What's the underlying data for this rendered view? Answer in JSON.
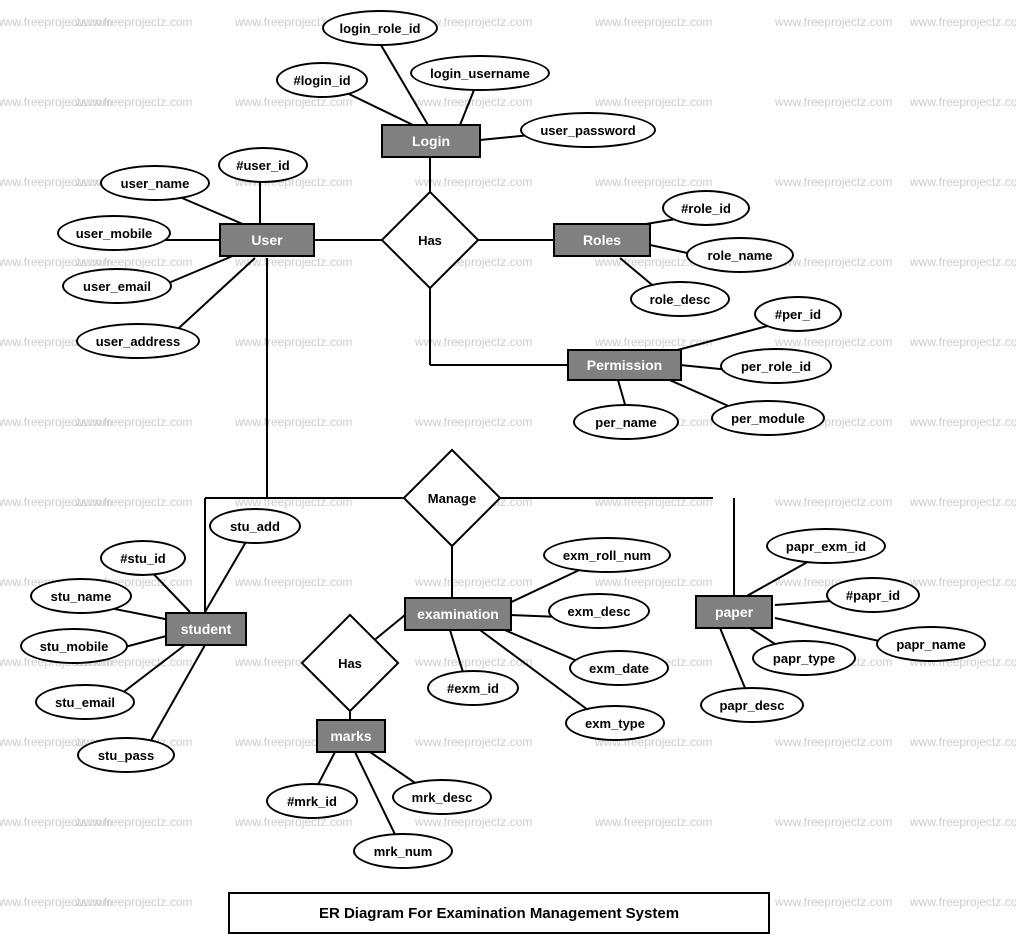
{
  "title": "ER Diagram For Examination Management System",
  "watermark_text": "www.freeprojectz.com",
  "colors": {
    "entity_bg": "#808080",
    "entity_text": "#ffffff",
    "border": "#000000",
    "attr_bg": "#ffffff",
    "watermark": "#cccccc"
  },
  "entities": {
    "login": "Login",
    "user": "User",
    "roles": "Roles",
    "permission": "Permission",
    "student": "student",
    "examination": "examination",
    "marks": "marks",
    "paper": "paper"
  },
  "relationships": {
    "has1": "Has",
    "manage": "Manage",
    "has2": "Has"
  },
  "attributes": {
    "login_role_id": "login_role_id",
    "login_id": "#login_id",
    "login_username": "login_username",
    "user_password": "user_password",
    "user_id": "#user_id",
    "user_name": "user_name",
    "user_mobile": "user_mobile",
    "user_email": "user_email",
    "user_address": "user_address",
    "role_id": "#role_id",
    "role_name": "role_name",
    "role_desc": "role_desc",
    "per_id": "#per_id",
    "per_role_id": "per_role_id",
    "per_module": "per_module",
    "per_name": "per_name",
    "stu_add": "stu_add",
    "stu_id": "#stu_id",
    "stu_name": "stu_name",
    "stu_mobile": "stu_mobile",
    "stu_email": "stu_email",
    "stu_pass": "stu_pass",
    "exm_roll_num": "exm_roll_num",
    "exm_desc": "exm_desc",
    "exm_date": "exm_date",
    "exm_type": "exm_type",
    "exm_id": "#exm_id",
    "papr_exm_id": "papr_exm_id",
    "papr_id": "#papr_id",
    "papr_name": "papr_name",
    "papr_type": "papr_type",
    "papr_desc": "papr_desc",
    "mrk_id": "#mrk_id",
    "mrk_desc": "mrk_desc",
    "mrk_num": "mrk_num"
  }
}
